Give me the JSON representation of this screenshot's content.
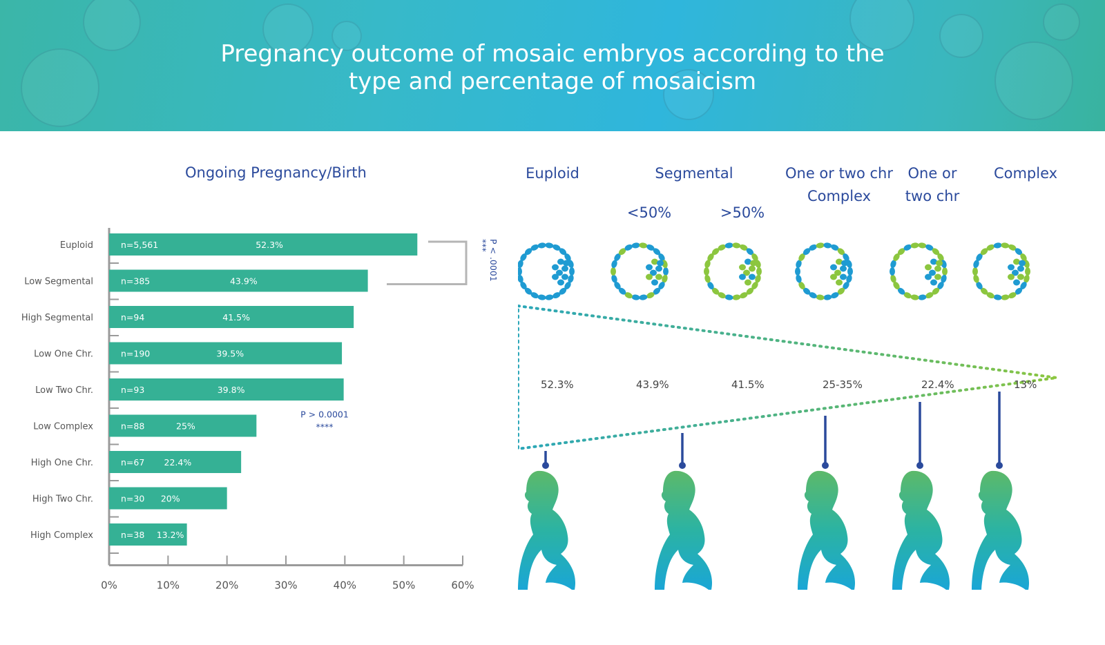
{
  "header": {
    "title_line1": "Pregnancy outcome of mosaic embryos according to the",
    "title_line2": "type and percentage of mosaicism"
  },
  "chart_data": {
    "type": "bar",
    "orientation": "horizontal",
    "title": "Ongoing Pregnancy/Birth",
    "categories": [
      "Euploid",
      "Low Segmental",
      "High Segmental",
      "Low One Chr.",
      "Low Two Chr.",
      "Low Complex",
      "High One Chr.",
      "High Two Chr.",
      "High Complex"
    ],
    "values": [
      52.3,
      43.9,
      41.5,
      39.5,
      39.8,
      25,
      22.4,
      20,
      13.2
    ],
    "value_labels": [
      "52.3%",
      "43.9%",
      "41.5%",
      "39.5%",
      "39.8%",
      "25%",
      "22.4%",
      "20%",
      "13.2%"
    ],
    "n_labels": [
      "n=5,561",
      "n=385",
      "n=94",
      "n=190",
      "n=93",
      "n=88",
      "n=67",
      "n=30",
      "n=38"
    ],
    "xlim": [
      0,
      60
    ],
    "x_ticks": [
      "0%",
      "10%",
      "20%",
      "30%",
      "40%",
      "50%",
      "60%"
    ],
    "bar_color": "#35b195",
    "annotations": {
      "bracket_pvalue": "P < .0001",
      "bracket_stars": "***",
      "lower_pvalue": "P > 0.0001",
      "lower_stars": "****"
    }
  },
  "diagram": {
    "groups": [
      {
        "label": "Euploid"
      },
      {
        "label": "Segmental"
      },
      {
        "label": "One or two chr Complex"
      },
      {
        "label": "One or two chr"
      },
      {
        "label": "Complex"
      }
    ],
    "sublabels": [
      "<50%",
      ">50%"
    ],
    "rates": [
      "52.3%",
      "43.9%",
      "41.5%",
      "25-35%",
      "22.4%",
      "13%"
    ],
    "colors": {
      "blue": "#1f9bd2",
      "green": "#8cc63f",
      "navy": "#2b4a9c",
      "teal": "#2aa6b8"
    }
  }
}
